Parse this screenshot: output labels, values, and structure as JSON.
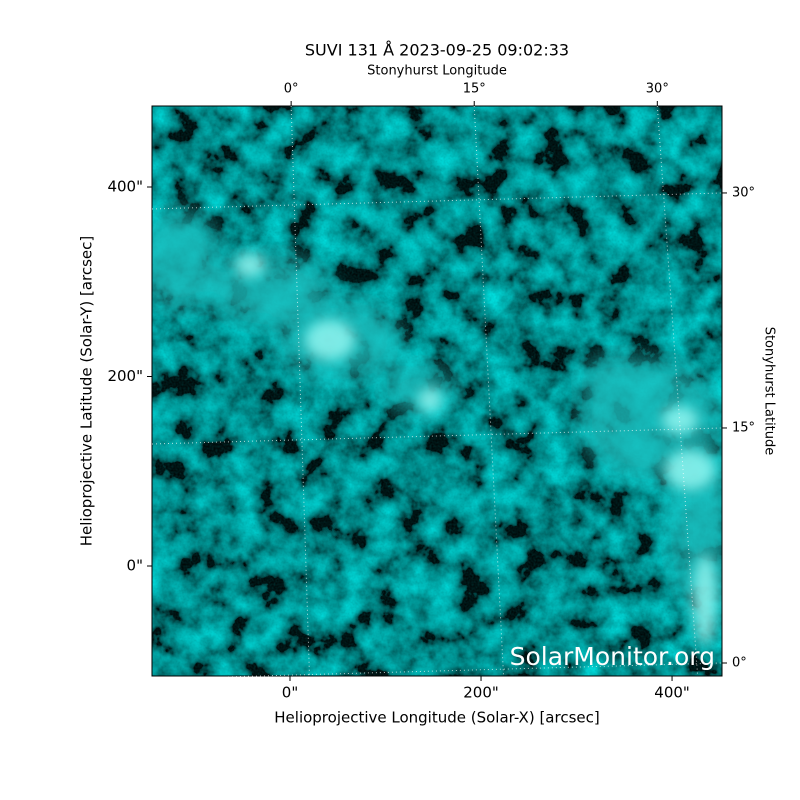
{
  "chart_data": {
    "type": "image",
    "title": "SUVI 131 Å 2023-09-25 09:02:33",
    "x_label": "Helioprojective Longitude (Solar-X) [arcsec]",
    "y_label": "Helioprojective Latitude (Solar-Y) [arcsec]",
    "x2_label": "Stonyhurst Longitude",
    "y2_label": "Stonyhurst Latitude",
    "watermark": "SolarMonitor.org",
    "xlim": [
      -144.5,
      452.3
    ],
    "ylim": [
      -116.1,
      485.5
    ],
    "xticks": [
      {
        "value": 0,
        "label": "0\""
      },
      {
        "value": 200,
        "label": "200\""
      },
      {
        "value": 400,
        "label": "400\""
      }
    ],
    "yticks": [
      {
        "value": 0,
        "label": "0\""
      },
      {
        "value": 200,
        "label": "200\""
      },
      {
        "value": 400,
        "label": "400\""
      }
    ],
    "x2lim": [
      -11.4,
      35.3
    ],
    "x2ticks": [
      {
        "value": 0,
        "label": "0°"
      },
      {
        "value": 15,
        "label": "15°"
      },
      {
        "value": 30,
        "label": "30°"
      }
    ],
    "y2lim": [
      -0.83,
      35.55
    ],
    "y2ticks": [
      {
        "value": 0,
        "label": "0°"
      },
      {
        "value": 15,
        "label": "15°"
      },
      {
        "value": 30,
        "label": "30°"
      }
    ],
    "grid": true
  }
}
